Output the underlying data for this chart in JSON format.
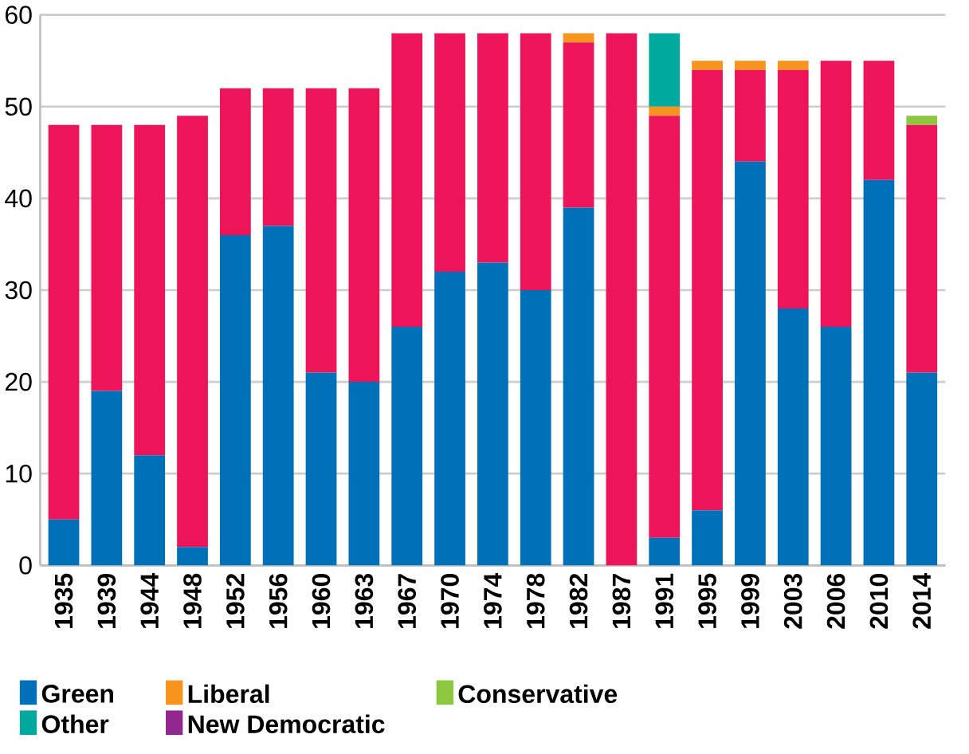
{
  "chart_data": {
    "type": "bar",
    "stacked": true,
    "categories": [
      "1935",
      "1939",
      "1944",
      "1948",
      "1952",
      "1956",
      "1960",
      "1963",
      "1967",
      "1970",
      "1974",
      "1978",
      "1982",
      "1987",
      "1991",
      "1995",
      "1999",
      "2003",
      "2006",
      "2010",
      "2014"
    ],
    "series": [
      {
        "name": "Green",
        "color": "#0070b8",
        "values": [
          5,
          19,
          12,
          2,
          36,
          37,
          21,
          20,
          26,
          32,
          33,
          30,
          39,
          0,
          3,
          6,
          44,
          28,
          26,
          42,
          21
        ]
      },
      {
        "color": "#ed1459",
        "values": [
          43,
          29,
          36,
          47,
          16,
          15,
          31,
          32,
          32,
          26,
          25,
          28,
          18,
          58,
          46,
          48,
          10,
          26,
          29,
          13,
          27
        ]
      },
      {
        "name": "Liberal",
        "color": "#f7941d",
        "values": [
          0,
          0,
          0,
          0,
          0,
          0,
          0,
          0,
          0,
          0,
          0,
          0,
          1,
          0,
          1,
          1,
          1,
          1,
          0,
          0,
          0
        ]
      },
      {
        "name": "Conservative",
        "color": "#8dc63f",
        "values": [
          0,
          0,
          0,
          0,
          0,
          0,
          0,
          0,
          0,
          0,
          0,
          0,
          0,
          0,
          0,
          0,
          0,
          0,
          0,
          0,
          1
        ]
      },
      {
        "name": "Other",
        "color": "#00a99d",
        "values": [
          0,
          0,
          0,
          0,
          0,
          0,
          0,
          0,
          0,
          0,
          0,
          0,
          0,
          0,
          8,
          0,
          0,
          0,
          0,
          0,
          0
        ]
      },
      {
        "name": "New Democratic",
        "color": "#92278f",
        "values": [
          0,
          0,
          0,
          0,
          0,
          0,
          0,
          0,
          0,
          0,
          0,
          0,
          0,
          0,
          0,
          0,
          0,
          0,
          0,
          0,
          0
        ]
      }
    ],
    "ylim": [
      0,
      60
    ],
    "yticks": [
      0,
      10,
      20,
      30,
      40,
      50,
      60
    ],
    "grid": "y",
    "legend": "bottom"
  }
}
